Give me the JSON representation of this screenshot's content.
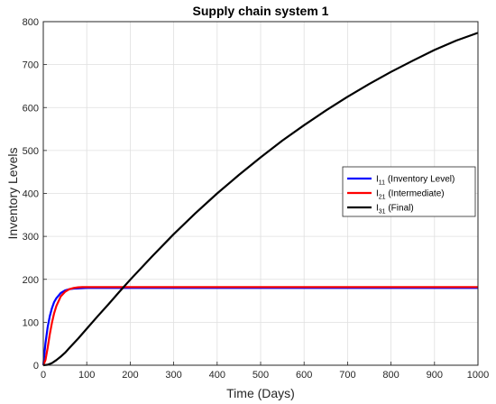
{
  "chart_data": {
    "type": "line",
    "title": "Supply chain system 1",
    "xlabel": "Time (Days)",
    "ylabel": "Inventory Levels",
    "xlim": [
      0,
      1000
    ],
    "ylim": [
      0,
      800
    ],
    "xticks": [
      0,
      100,
      200,
      300,
      400,
      500,
      600,
      700,
      800,
      900,
      1000
    ],
    "yticks": [
      0,
      100,
      200,
      300,
      400,
      500,
      600,
      700,
      800
    ],
    "grid": true,
    "legend_position": "right",
    "series": [
      {
        "name_main": "I",
        "name_sub": "11",
        "name_rest": "(Inventory Level)",
        "color": "#0000ff",
        "x": [
          0,
          5,
          10,
          15,
          20,
          25,
          30,
          40,
          50,
          60,
          70,
          80,
          90,
          100,
          120,
          150,
          200,
          300,
          400,
          500,
          600,
          700,
          800,
          900,
          1000
        ],
        "y": [
          0,
          51,
          88,
          114,
          133,
          147,
          156,
          168,
          174,
          177,
          178.5,
          179,
          179.5,
          180,
          180,
          180,
          180,
          180,
          180,
          180,
          180,
          180,
          180,
          180,
          180
        ]
      },
      {
        "name_main": "I",
        "name_sub": "21",
        "name_rest": "(Intermediate)",
        "color": "#ff0000",
        "x": [
          0,
          5,
          10,
          15,
          20,
          25,
          30,
          40,
          50,
          60,
          70,
          80,
          90,
          100,
          120,
          150,
          200,
          300,
          400,
          500,
          600,
          700,
          800,
          900,
          1000
        ],
        "y": [
          0,
          12,
          40,
          72,
          99,
          121,
          138,
          160,
          171,
          177,
          180,
          181.5,
          182,
          182,
          182,
          182,
          182,
          182,
          182,
          182,
          182,
          182,
          182,
          182,
          182
        ]
      },
      {
        "name_main": "I",
        "name_sub": "31",
        "name_rest": "(Final)",
        "color": "#000000",
        "x": [
          0,
          10,
          20,
          30,
          40,
          50,
          60,
          80,
          100,
          125,
          150,
          175,
          200,
          250,
          300,
          350,
          400,
          450,
          500,
          550,
          600,
          650,
          700,
          750,
          800,
          850,
          900,
          950,
          1000
        ],
        "y": [
          0,
          1,
          5,
          12,
          20,
          29,
          40,
          62,
          85,
          114,
          142,
          171,
          199,
          253,
          305,
          354,
          400,
          443,
          484,
          523,
          559,
          593,
          625,
          655,
          683,
          709,
          734,
          756,
          774
        ]
      }
    ]
  }
}
